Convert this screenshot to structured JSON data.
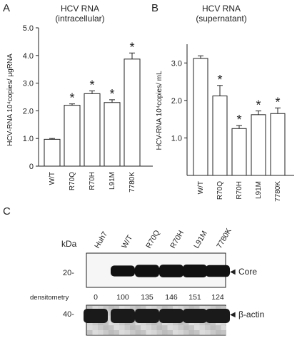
{
  "panels": {
    "a": {
      "letter": "A",
      "title_line1": "HCV RNA",
      "title_line2": "(intracellular)"
    },
    "b": {
      "letter": "B",
      "title_line1": "HCV RNA",
      "title_line2": "(supernatant)"
    },
    "c": {
      "letter": "C",
      "kda_label": "kDa",
      "lane_labels": [
        "Huh7",
        "W/T",
        "R70Q",
        "R70H",
        "L91M",
        "7780K"
      ],
      "core_marker": "20-",
      "core_label": "Core",
      "actin_marker": "40-",
      "actin_label": "β-actin",
      "densitometry_label": "densitometry",
      "densitometry_values": [
        "0",
        "100",
        "135",
        "146",
        "151",
        "124"
      ]
    }
  },
  "chart_data": [
    {
      "type": "bar",
      "categories": [
        "W/T",
        "R70Q",
        "R70H",
        "L91M",
        "7780K"
      ],
      "values": [
        0.97,
        2.2,
        2.62,
        2.3,
        3.87
      ],
      "errors": [
        0.03,
        0.05,
        0.1,
        0.1,
        0.22
      ],
      "significant": [
        false,
        true,
        true,
        true,
        true
      ],
      "significance_mark": "*",
      "title": "HCV RNA (intracellular)",
      "ylabel": "HCV-RNA 10⁴copies/ μgRNA",
      "ylim": [
        0,
        5
      ],
      "yticks": [
        "0",
        "1.0",
        "2.0",
        "3.0",
        "4.0",
        "5.0"
      ],
      "bar_color": "#ffffff",
      "stroke_color": "#222222"
    },
    {
      "type": "bar",
      "categories": [
        "W/T",
        "R70Q",
        "R70H",
        "L91M",
        "7780K"
      ],
      "values": [
        3.12,
        2.12,
        1.25,
        1.62,
        1.65
      ],
      "errors": [
        0.07,
        0.28,
        0.08,
        0.1,
        0.15
      ],
      "significant": [
        false,
        true,
        true,
        true,
        true
      ],
      "significance_mark": "*",
      "title": "HCV RNA (supernatant)",
      "ylabel": "HCV-RNA 10⁴copies/ mL",
      "ylim": [
        0,
        3.5
      ],
      "yticks": [
        "1.0",
        "2.0",
        "3.0"
      ],
      "bar_color": "#ffffff",
      "stroke_color": "#222222"
    }
  ],
  "blot": {
    "core_band_color": "#111111",
    "actin_band_color": "#1a1a1a",
    "background": "#f4f4f4"
  }
}
